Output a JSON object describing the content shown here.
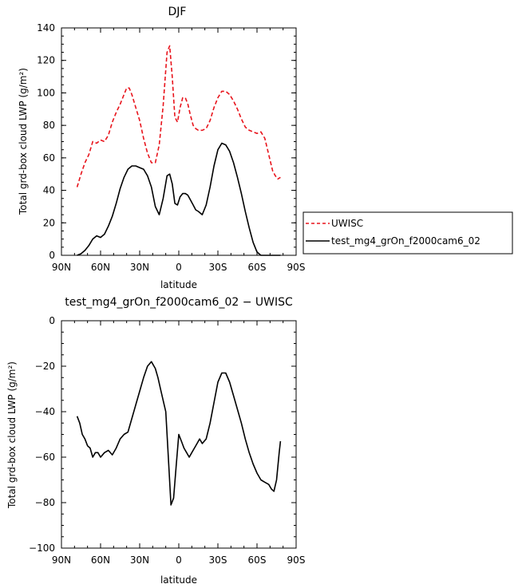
{
  "chart_data": [
    {
      "type": "line",
      "title": "DJF",
      "xlabel": "latitude",
      "ylabel": "Total grd-box cloud LWP (g/m²)",
      "x_tick_labels": [
        "90N",
        "60N",
        "30N",
        "0",
        "30S",
        "60S",
        "90S"
      ],
      "x_tick_values": [
        -90,
        -60,
        -30,
        0,
        30,
        60,
        90
      ],
      "xlim": [
        -90,
        90
      ],
      "ylim": [
        0,
        140
      ],
      "y_tick_values": [
        0,
        20,
        40,
        60,
        80,
        100,
        120,
        140
      ],
      "y_tick_labels": [
        "0",
        "20",
        "40",
        "60",
        "80",
        "100",
        "120",
        "140"
      ],
      "grid": false,
      "legend_position": "right",
      "series": [
        {
          "name": "UWISC",
          "color": "#e8141c",
          "dash": "dashed",
          "x": [
            -78,
            -75,
            -72,
            -69,
            -66,
            -63,
            -60,
            -57,
            -54,
            -51,
            -48,
            -45,
            -42,
            -40,
            -38,
            -36,
            -33,
            -30,
            -27,
            -24,
            -21,
            -18,
            -15,
            -12,
            -9,
            -7,
            -5,
            -3,
            -1,
            1,
            3,
            5,
            7,
            9,
            11,
            13,
            15,
            18,
            21,
            24,
            27,
            30,
            33,
            36,
            39,
            42,
            45,
            48,
            51,
            54,
            57,
            60,
            63,
            66,
            69,
            72,
            74,
            76,
            78
          ],
          "y": [
            42,
            50,
            57,
            62,
            70,
            69,
            71,
            70,
            74,
            82,
            88,
            93,
            99,
            103,
            103,
            99,
            91,
            83,
            72,
            63,
            57,
            57,
            68,
            92,
            125,
            129,
            110,
            85,
            82,
            91,
            97,
            97,
            93,
            86,
            80,
            78,
            77,
            77,
            78,
            83,
            91,
            97,
            101,
            101,
            99,
            95,
            90,
            84,
            79,
            77,
            76,
            75,
            76,
            72,
            62,
            52,
            49,
            47,
            48
          ],
          "note_unused": null
        },
        {
          "name": "test_mg4_grOn_f2000cam6_02",
          "color": "#000000",
          "dash": "solid",
          "x": [
            -78,
            -75,
            -72,
            -69,
            -66,
            -63,
            -60,
            -57,
            -54,
            -51,
            -48,
            -45,
            -42,
            -39,
            -36,
            -33,
            -30,
            -27,
            -24,
            -21,
            -18,
            -15,
            -12,
            -9,
            -7,
            -5,
            -3,
            -1,
            1,
            3,
            5,
            7,
            9,
            11,
            13,
            15,
            18,
            21,
            24,
            27,
            30,
            33,
            36,
            39,
            42,
            45,
            48,
            51,
            54,
            57,
            60,
            63,
            66,
            69,
            72,
            75,
            78
          ],
          "y": [
            0,
            1,
            3,
            6,
            10,
            12,
            11,
            13,
            18,
            24,
            32,
            41,
            48,
            53,
            55,
            55,
            54,
            53,
            49,
            42,
            30,
            25,
            35,
            49,
            50,
            44,
            32,
            31,
            36,
            38,
            38,
            37,
            34,
            31,
            28,
            27,
            25,
            31,
            42,
            55,
            65,
            69,
            68,
            64,
            57,
            48,
            38,
            27,
            17,
            8,
            2,
            0,
            0,
            0,
            0,
            0,
            0
          ]
        }
      ]
    },
    {
      "type": "line",
      "title": "test_mg4_grOn_f2000cam6_02 − UWISC",
      "xlabel": "latitude",
      "ylabel": "Total grd-box cloud LWP (g/m²)",
      "x_tick_labels": [
        "90N",
        "60N",
        "30N",
        "0",
        "30S",
        "60S",
        "90S"
      ],
      "x_tick_values": [
        -90,
        -60,
        -30,
        0,
        30,
        60,
        90
      ],
      "xlim": [
        -90,
        90
      ],
      "ylim": [
        -100,
        0
      ],
      "y_tick_values": [
        -100,
        -80,
        -60,
        -40,
        -20,
        0
      ],
      "y_tick_labels": [
        "−100",
        "−80",
        "−60",
        "−40",
        "−20",
        "0"
      ],
      "grid": false,
      "series": [
        {
          "color": "#000000",
          "dash": "solid",
          "x": [
            -78,
            -76,
            -74,
            -72,
            -70,
            -68,
            -66,
            -64,
            -62,
            -60,
            -57,
            -54,
            -51,
            -48,
            -45,
            -42,
            -39,
            -36,
            -33,
            -30,
            -27,
            -24,
            -21,
            -18,
            -16,
            -14,
            -12,
            -10,
            -8,
            -6,
            -4,
            -2,
            0,
            2,
            4,
            6,
            8,
            10,
            12,
            14,
            16,
            18,
            21,
            24,
            27,
            30,
            33,
            36,
            39,
            42,
            45,
            48,
            51,
            54,
            57,
            60,
            63,
            66,
            69,
            71,
            73,
            75,
            77,
            78
          ],
          "y": [
            -42,
            -45,
            -50,
            -52,
            -55,
            -56,
            -60,
            -58,
            -58,
            -60,
            -58,
            -57,
            -59,
            -56,
            -52,
            -50,
            -49,
            -43,
            -37,
            -31,
            -25,
            -20,
            -18,
            -21,
            -25,
            -30,
            -35,
            -40,
            -60,
            -81,
            -78,
            -64,
            -50,
            -53,
            -56,
            -58,
            -60,
            -58,
            -56,
            -54,
            -52,
            -54,
            -52,
            -45,
            -36,
            -27,
            -23,
            -23,
            -27,
            -33,
            -39,
            -45,
            -52,
            -58,
            -63,
            -67,
            -70,
            -71,
            -72,
            -74,
            -75,
            -70,
            -58,
            -53
          ]
        }
      ]
    }
  ]
}
